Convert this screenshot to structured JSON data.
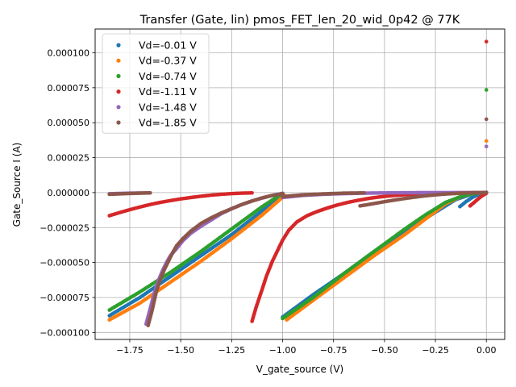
{
  "chart_data": {
    "type": "scatter",
    "title": "Transfer (Gate, lin) pmos_FET_len_20_wid_0p42 @ 77K",
    "xlabel": "V_gate_source (V)",
    "ylabel": "Gate_Source I (A)",
    "xlim": [
      -1.92,
      0.09
    ],
    "ylim": [
      -0.000105,
      0.000117
    ],
    "x_ticks": [
      -1.75,
      -1.5,
      -1.25,
      -1.0,
      -0.75,
      -0.5,
      -0.25,
      0.0
    ],
    "x_tick_labels": [
      "−1.75",
      "−1.50",
      "−1.25",
      "−1.00",
      "−0.75",
      "−0.50",
      "−0.25",
      "0.00"
    ],
    "y_ticks": [
      -0.0001,
      -7.5e-05,
      -5e-05,
      -2.5e-05,
      0.0,
      2.5e-05,
      5e-05,
      7.5e-05,
      0.0001
    ],
    "y_tick_labels": [
      "−0.000100",
      "−0.000075",
      "−0.000050",
      "−0.000025",
      "0.000000",
      "0.000025",
      "0.000050",
      "0.000075",
      "0.000100"
    ],
    "grid": true,
    "legend_position": "top-left",
    "series": [
      {
        "name": "Vd=-0.01 V",
        "color": "#1f77b4",
        "segments": [
          {
            "x": [
              -1.85,
              -1.7,
              -1.55,
              -1.4,
              -1.25,
              -1.1,
              -1.0
            ],
            "y": [
              -8.8e-05,
              -7.5e-05,
              -6e-05,
              -4.5e-05,
              -3e-05,
              -1.3e-05,
              -2e-06
            ]
          },
          {
            "x": [
              -1.0,
              -0.85,
              -0.7,
              -0.55,
              -0.4,
              -0.25,
              -0.15,
              -0.08,
              -0.04,
              0.0
            ],
            "y": [
              -8.9e-05,
              -7.3e-05,
              -5.8e-05,
              -4.2e-05,
              -2.8e-05,
              -1.4e-05,
              -5e-06,
              -1.5e-06,
              -3e-07,
              0.0
            ]
          },
          {
            "x": [
              -0.13,
              -0.1,
              -0.07,
              -0.04,
              -0.02,
              0.0
            ],
            "y": [
              -1e-05,
              -6.5e-06,
              -3.5e-06,
              -1.5e-06,
              -5e-07,
              0.0
            ]
          }
        ],
        "points": [
          {
            "x": 0.0,
            "y": 2e-07
          }
        ]
      },
      {
        "name": "Vd=-0.37 V",
        "color": "#ff7f0e",
        "segments": [
          {
            "x": [
              -1.85,
              -1.7,
              -1.55,
              -1.4,
              -1.25,
              -1.1,
              -0.99
            ],
            "y": [
              -9.1e-05,
              -7.9e-05,
              -6.4e-05,
              -4.9e-05,
              -3.3e-05,
              -1.6e-05,
              -2e-06
            ]
          },
          {
            "x": [
              -0.98,
              -0.85,
              -0.7,
              -0.55,
              -0.4,
              -0.3,
              -0.2,
              -0.12,
              -0.06,
              0.0
            ],
            "y": [
              -9.1e-05,
              -7.7e-05,
              -6.1e-05,
              -4.5e-05,
              -3e-05,
              -1.9e-05,
              -8e-06,
              -2.5e-06,
              -6e-07,
              0.0
            ]
          }
        ],
        "points": [
          {
            "x": 0.0,
            "y": 3.7e-05
          }
        ]
      },
      {
        "name": "Vd=-0.74 V",
        "color": "#2ca02c",
        "segments": [
          {
            "x": [
              -1.85,
              -1.7,
              -1.55,
              -1.4,
              -1.25,
              -1.1,
              -1.0
            ],
            "y": [
              -8.4e-05,
              -7.1e-05,
              -5.7e-05,
              -4.2e-05,
              -2.6e-05,
              -1e-05,
              -5e-07
            ]
          },
          {
            "x": [
              -1.0,
              -0.85,
              -0.7,
              -0.55,
              -0.4,
              -0.3,
              -0.2,
              -0.12,
              -0.06,
              0.0
            ],
            "y": [
              -9e-05,
              -7.5e-05,
              -5.8e-05,
              -4.2e-05,
              -2.6e-05,
              -1.6e-05,
              -7e-06,
              -2.5e-06,
              -6e-07,
              0.0
            ]
          }
        ],
        "points": [
          {
            "x": 0.0,
            "y": 7.35e-05
          }
        ]
      },
      {
        "name": "Vd=-1.11 V",
        "color": "#d62728",
        "segments": [
          {
            "x": [
              -1.85,
              -1.8,
              -1.75,
              -1.7,
              -1.65,
              -1.6,
              -1.55,
              -1.5,
              -1.45,
              -1.4,
              -1.35,
              -1.3,
              -1.25,
              -1.2,
              -1.15
            ],
            "y": [
              -1.65e-05,
              -1.43e-05,
              -1.22e-05,
              -1.03e-05,
              -8.5e-06,
              -7e-06,
              -5.7e-06,
              -4.5e-06,
              -3.5e-06,
              -2.6e-06,
              -1.8e-06,
              -1.2e-06,
              -7e-07,
              -4e-07,
              -2e-07
            ]
          },
          {
            "x": [
              -1.15,
              -1.13,
              -1.1,
              -1.08,
              -1.05,
              -1.02,
              -1.0,
              -0.97,
              -0.93,
              -0.88,
              -0.83,
              -0.78,
              -0.73,
              -0.68,
              -0.63,
              -0.58,
              -0.53,
              -0.48,
              -0.43,
              -0.38,
              -0.33,
              -0.28,
              -0.23,
              -0.18,
              -0.13,
              -0.08,
              -0.04,
              0.0
            ],
            "y": [
              -9.2e-05,
              -8.2e-05,
              -6.9e-05,
              -6e-05,
              -4.9e-05,
              -4e-05,
              -3.4e-05,
              -2.7e-05,
              -2.1e-05,
              -1.65e-05,
              -1.35e-05,
              -1.1e-05,
              -8.8e-06,
              -7e-06,
              -5.5e-06,
              -4.2e-06,
              -3.2e-06,
              -2.4e-06,
              -1.8e-06,
              -1.3e-06,
              -9e-07,
              -6e-07,
              -4e-07,
              -2e-07,
              -1e-07,
              -5e-08,
              0.0,
              0.0
            ]
          },
          {
            "x": [
              -0.08,
              -0.06,
              -0.04,
              -0.02,
              0.0
            ],
            "y": [
              -9.5e-06,
              -7e-06,
              -4.5e-06,
              -2.2e-06,
              -5e-07
            ]
          }
        ],
        "points": [
          {
            "x": 0.0,
            "y": 0.000108
          }
        ]
      },
      {
        "name": "Vd=-1.48 V",
        "color": "#9467bd",
        "segments": [
          {
            "x": [
              -1.85,
              -1.8,
              -1.75,
              -1.7,
              -1.65
            ],
            "y": [
              -8e-07,
              -6e-07,
              -4e-07,
              -3e-07,
              -2e-07
            ]
          },
          {
            "x": [
              -1.67,
              -1.65,
              -1.63,
              -1.61,
              -1.59,
              -1.57,
              -1.55,
              -1.52,
              -1.49,
              -1.45,
              -1.4,
              -1.35,
              -1.3,
              -1.25,
              -1.2,
              -1.15,
              -1.1,
              -1.05,
              -1.0
            ],
            "y": [
              -9.4e-05,
              -8.3e-05,
              -7.2e-05,
              -6.3e-05,
              -5.6e-05,
              -5e-05,
              -4.5e-05,
              -4e-05,
              -3.45e-05,
              -2.9e-05,
              -2.4e-05,
              -1.95e-05,
              -1.5e-05,
              -1.15e-05,
              -8.5e-06,
              -6e-06,
              -3.8e-06,
              -2e-06,
              -5e-07
            ]
          },
          {
            "x": [
              -1.0,
              -0.9,
              -0.8,
              -0.7,
              -0.6,
              -0.5,
              -0.4,
              -0.3,
              -0.2,
              -0.1,
              0.0
            ],
            "y": [
              -3.5e-06,
              -2e-06,
              -1.2e-06,
              -7e-07,
              -4e-07,
              -2e-07,
              -1e-07,
              0.0,
              0.0,
              0.0,
              0.0
            ]
          }
        ],
        "points": [
          {
            "x": 0.0,
            "y": 3.3e-05
          }
        ]
      },
      {
        "name": "Vd=-1.85 V",
        "color": "#8c564b",
        "segments": [
          {
            "x": [
              -1.85,
              -1.8,
              -1.75,
              -1.7,
              -1.65
            ],
            "y": [
              -1.2e-06,
              -9e-07,
              -6e-07,
              -4e-07,
              -2e-07
            ]
          },
          {
            "x": [
              -1.66,
              -1.64,
              -1.62,
              -1.6,
              -1.58,
              -1.56,
              -1.54,
              -1.52,
              -1.49,
              -1.45,
              -1.4,
              -1.35,
              -1.3,
              -1.25,
              -1.2,
              -1.15,
              -1.1,
              -1.05,
              -1.0
            ],
            "y": [
              -9.5e-05,
              -8.4e-05,
              -7.1e-05,
              -6.2e-05,
              -5.5e-05,
              -4.9e-05,
              -4.3e-05,
              -3.8e-05,
              -3.3e-05,
              -2.75e-05,
              -2.2e-05,
              -1.8e-05,
              -1.45e-05,
              -1.15e-05,
              -8.5e-06,
              -6e-06,
              -3.8e-06,
              -2e-06,
              -7e-07
            ]
          },
          {
            "x": [
              -1.0,
              -0.9,
              -0.8,
              -0.7,
              -0.6
            ],
            "y": [
              -2.8e-06,
              -1.6e-06,
              -9e-07,
              -4e-07,
              -2e-07
            ]
          },
          {
            "x": [
              -0.62,
              -0.55,
              -0.5,
              -0.45,
              -0.4,
              -0.35,
              -0.3,
              -0.25,
              -0.2,
              -0.15,
              -0.1,
              -0.05,
              0.0
            ],
            "y": [
              -9.5e-06,
              -7.8e-06,
              -6.5e-06,
              -5.3e-06,
              -4.2e-06,
              -3.2e-06,
              -2.3e-06,
              -1.6e-06,
              -1e-06,
              -6e-07,
              -3e-07,
              -1e-07,
              0.0
            ]
          }
        ],
        "points": [
          {
            "x": 0.0,
            "y": 5.25e-05
          }
        ]
      }
    ]
  }
}
